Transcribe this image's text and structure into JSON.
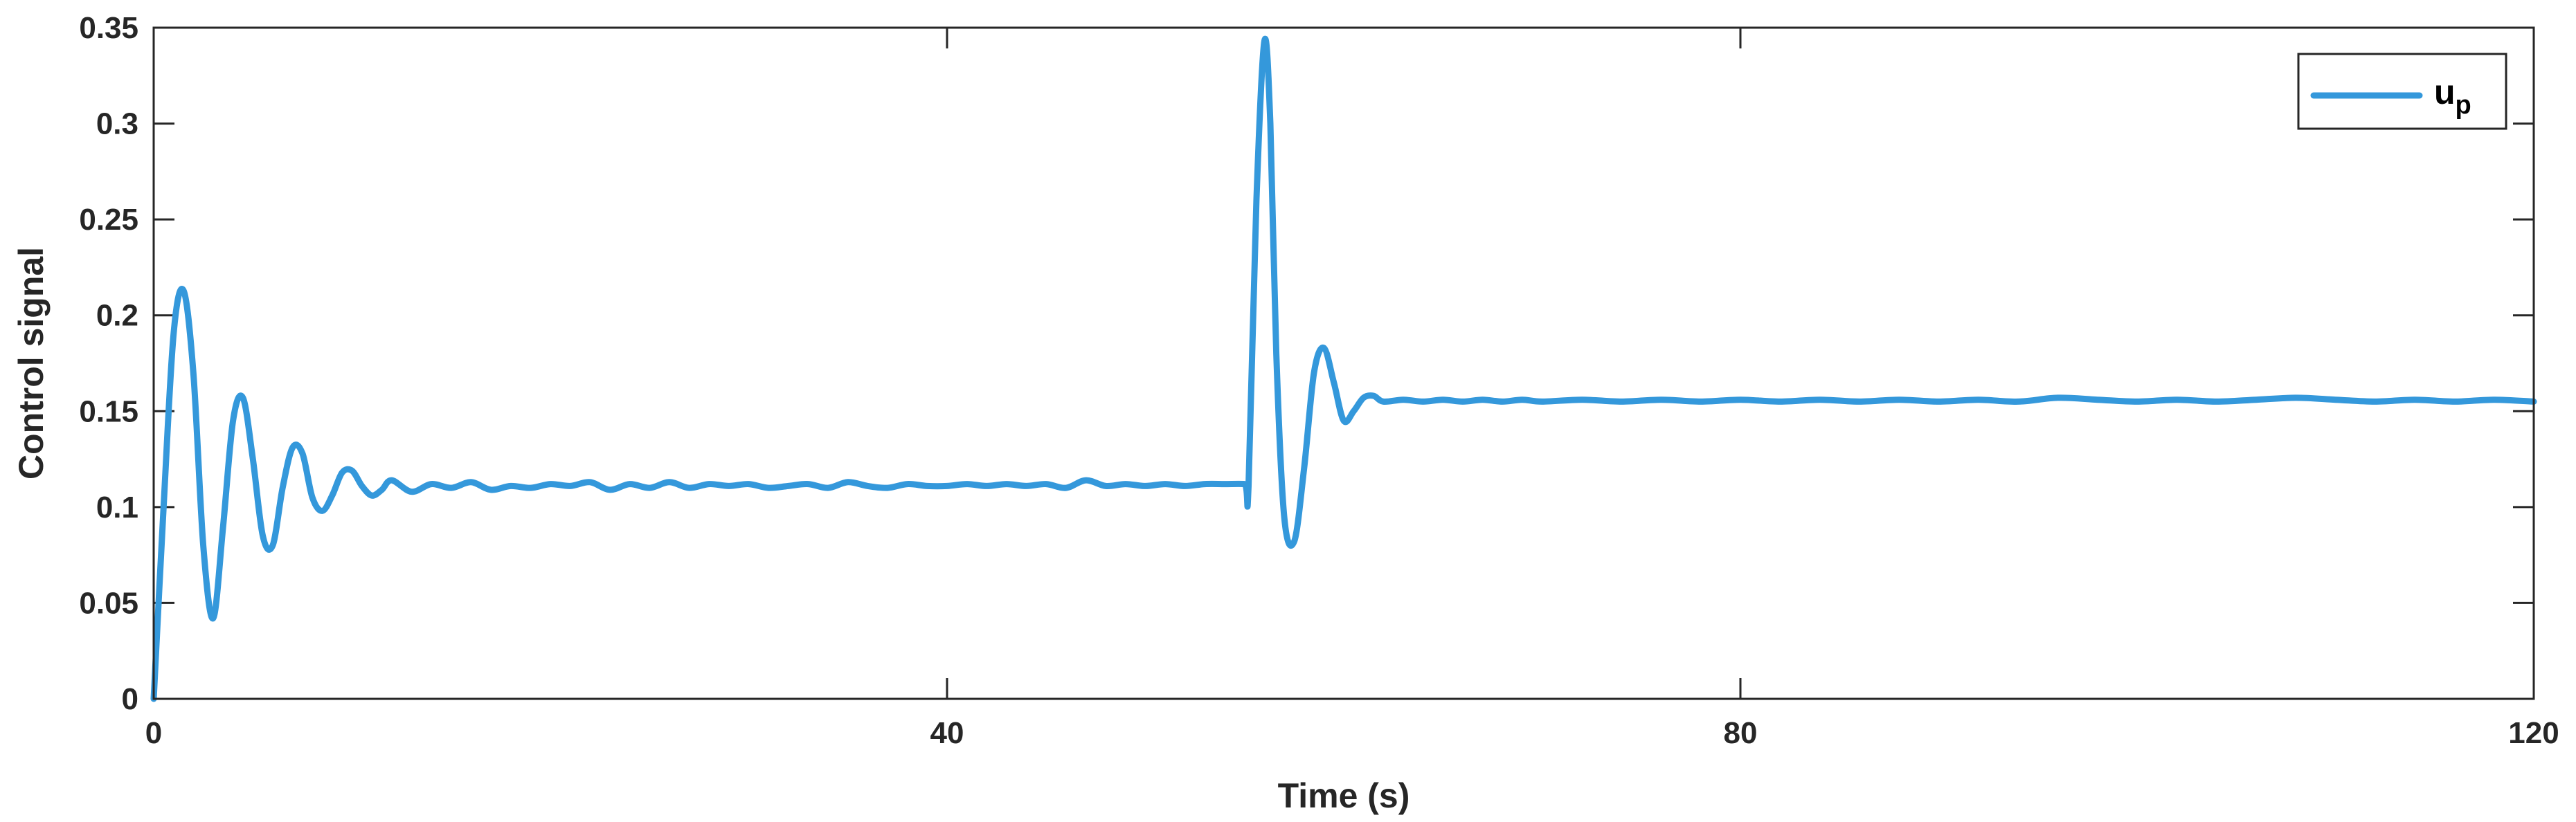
{
  "chart_data": {
    "type": "line",
    "xlabel": "Time (s)",
    "ylabel": "Control signal",
    "xlim": [
      0,
      120
    ],
    "ylim": [
      0,
      0.35
    ],
    "xticks": [
      "0",
      "40",
      "80",
      "120"
    ],
    "yticks": [
      "0",
      "0.05",
      "0.1",
      "0.15",
      "0.2",
      "0.25",
      "0.3",
      "0.35"
    ],
    "grid": false,
    "legend_position": "top-right",
    "series": [
      {
        "name": "u",
        "subscript": "p",
        "color": "#3498db",
        "x": [
          0,
          0.5,
          1.0,
          1.5,
          2.0,
          2.5,
          3.0,
          3.5,
          4.0,
          4.5,
          5.0,
          5.5,
          6.0,
          6.5,
          7.0,
          7.5,
          8.0,
          8.5,
          9.0,
          9.5,
          10.0,
          10.5,
          11.0,
          11.5,
          12.0,
          13.0,
          14.0,
          15.0,
          16.0,
          17.0,
          18.0,
          19.0,
          20.0,
          21.0,
          22.0,
          23.0,
          24.0,
          25.0,
          26.0,
          27.0,
          28.0,
          29.0,
          30.0,
          31.0,
          32.0,
          33.0,
          34.0,
          35.0,
          36.0,
          37.0,
          38.0,
          39.0,
          40.0,
          41.0,
          42.0,
          43.0,
          44.0,
          45.0,
          46.0,
          47.0,
          48.0,
          49.0,
          50.0,
          51.0,
          52.0,
          53.0,
          54.0,
          55.0,
          55.2,
          55.6,
          56.0,
          56.3,
          56.6,
          57.0,
          57.5,
          58.0,
          58.5,
          59.0,
          59.5,
          60.0,
          60.5,
          61.0,
          61.5,
          62.0,
          63.0,
          64.0,
          65.0,
          66.0,
          67.0,
          68.0,
          69.0,
          70.0,
          72.0,
          74.0,
          76.0,
          78.0,
          80.0,
          82.0,
          84.0,
          86.0,
          88.0,
          90.0,
          92.0,
          94.0,
          96.0,
          98.0,
          100.0,
          102.0,
          104.0,
          106.0,
          108.0,
          110.0,
          112.0,
          114.0,
          116.0,
          118.0,
          120.0
        ],
        "y": [
          0.0,
          0.1,
          0.19,
          0.213,
          0.17,
          0.08,
          0.042,
          0.09,
          0.145,
          0.157,
          0.125,
          0.085,
          0.08,
          0.11,
          0.131,
          0.128,
          0.105,
          0.098,
          0.106,
          0.118,
          0.119,
          0.111,
          0.106,
          0.109,
          0.114,
          0.108,
          0.112,
          0.11,
          0.113,
          0.109,
          0.111,
          0.11,
          0.112,
          0.111,
          0.113,
          0.109,
          0.112,
          0.11,
          0.113,
          0.11,
          0.112,
          0.111,
          0.112,
          0.11,
          0.111,
          0.112,
          0.11,
          0.113,
          0.111,
          0.11,
          0.112,
          0.111,
          0.111,
          0.112,
          0.111,
          0.112,
          0.111,
          0.112,
          0.11,
          0.114,
          0.111,
          0.112,
          0.111,
          0.112,
          0.111,
          0.112,
          0.112,
          0.112,
          0.111,
          0.26,
          0.343,
          0.3,
          0.18,
          0.095,
          0.082,
          0.12,
          0.17,
          0.183,
          0.165,
          0.145,
          0.15,
          0.157,
          0.158,
          0.155,
          0.156,
          0.155,
          0.156,
          0.155,
          0.156,
          0.155,
          0.156,
          0.155,
          0.156,
          0.155,
          0.156,
          0.155,
          0.156,
          0.155,
          0.156,
          0.155,
          0.156,
          0.155,
          0.156,
          0.155,
          0.157,
          0.156,
          0.155,
          0.156,
          0.155,
          0.156,
          0.157,
          0.156,
          0.155,
          0.156,
          0.155,
          0.156,
          0.155
        ]
      }
    ]
  }
}
